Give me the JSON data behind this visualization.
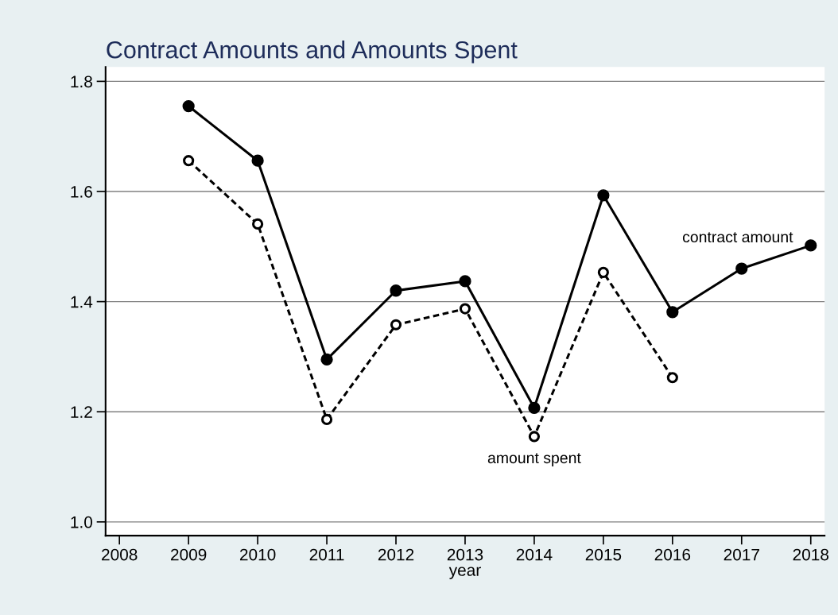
{
  "chart_data": {
    "type": "line",
    "title": "Contract Amounts and Amounts Spent",
    "xlabel": "year",
    "x": [
      2009,
      2010,
      2011,
      2012,
      2013,
      2014,
      2015,
      2016,
      2017,
      2018
    ],
    "series": [
      {
        "name": "contract amount",
        "color": "#000000",
        "marker": "circle",
        "line_style": "solid",
        "values": [
          1.755,
          1.656,
          1.295,
          1.42,
          1.437,
          1.207,
          1.593,
          1.381,
          1.46,
          1.502
        ]
      },
      {
        "name": "amount spent",
        "color": "#000000",
        "marker": "circle",
        "line_style": "dashed",
        "values": [
          1.656,
          1.541,
          1.186,
          1.358,
          1.387,
          1.155,
          1.453,
          1.262,
          null,
          null
        ]
      }
    ],
    "xlim": [
      2007.8,
      2018.2
    ],
    "xticks": [
      2008,
      2009,
      2010,
      2011,
      2012,
      2013,
      2014,
      2015,
      2016,
      2017,
      2018
    ],
    "ylim": [
      0.975,
      1.826
    ],
    "yticks": [
      {
        "value": 1.0,
        "label": "1.0"
      },
      1.2,
      1.4,
      1.6,
      1.8
    ],
    "grid": "y",
    "legend": false
  }
}
